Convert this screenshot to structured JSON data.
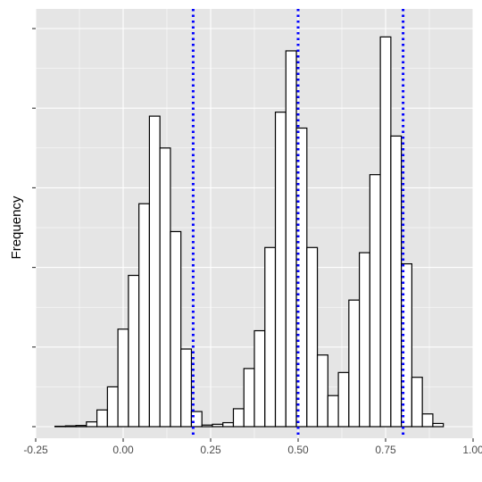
{
  "chart_data": {
    "type": "bar",
    "title": "",
    "xlabel": "",
    "ylabel": "Frequency",
    "xlim": [
      -0.25,
      1.0
    ],
    "ylim": [
      0,
      100
    ],
    "x_ticks": [
      -0.25,
      0.0,
      0.25,
      0.5,
      0.75,
      1.0
    ],
    "x_tick_labels": [
      "-0.25",
      "0.00",
      "0.25",
      "0.50",
      "0.75",
      "1.00"
    ],
    "y_ticks": [
      0,
      20,
      40,
      60,
      80,
      100
    ],
    "grid": true,
    "bin_width": 0.03,
    "bin_starts": [
      -0.195,
      -0.165,
      -0.135,
      -0.105,
      -0.075,
      -0.045,
      -0.015,
      0.015,
      0.045,
      0.075,
      0.105,
      0.135,
      0.165,
      0.195,
      0.225,
      0.255,
      0.285,
      0.315,
      0.345,
      0.375,
      0.405,
      0.435,
      0.465,
      0.495,
      0.525,
      0.555,
      0.585,
      0.615,
      0.645,
      0.675,
      0.705,
      0.735,
      0.765,
      0.795,
      0.825,
      0.855,
      0.885,
      0.915,
      0.945,
      0.975
    ],
    "values": [
      0.1,
      0.2,
      0.3,
      1.2,
      4.2,
      10,
      24.5,
      38,
      56,
      78,
      70,
      49,
      19.5,
      3.8,
      0.4,
      0.6,
      1.0,
      4.5,
      14.6,
      24.1,
      45,
      79,
      94.4,
      75,
      45,
      18,
      7.8,
      13.6,
      31.8,
      43.7,
      63.3,
      97.9,
      73,
      40.9,
      12.4,
      3.2,
      0.8,
      0,
      0,
      0
    ],
    "vlines": {
      "x": [
        0.2,
        0.5,
        0.8
      ],
      "color": "#0000ff",
      "style": "dotted"
    },
    "colors": {
      "panel_background": "#e5e5e5",
      "grid": "#ffffff",
      "bar_fill": "#ffffff",
      "bar_stroke": "#000000"
    }
  }
}
